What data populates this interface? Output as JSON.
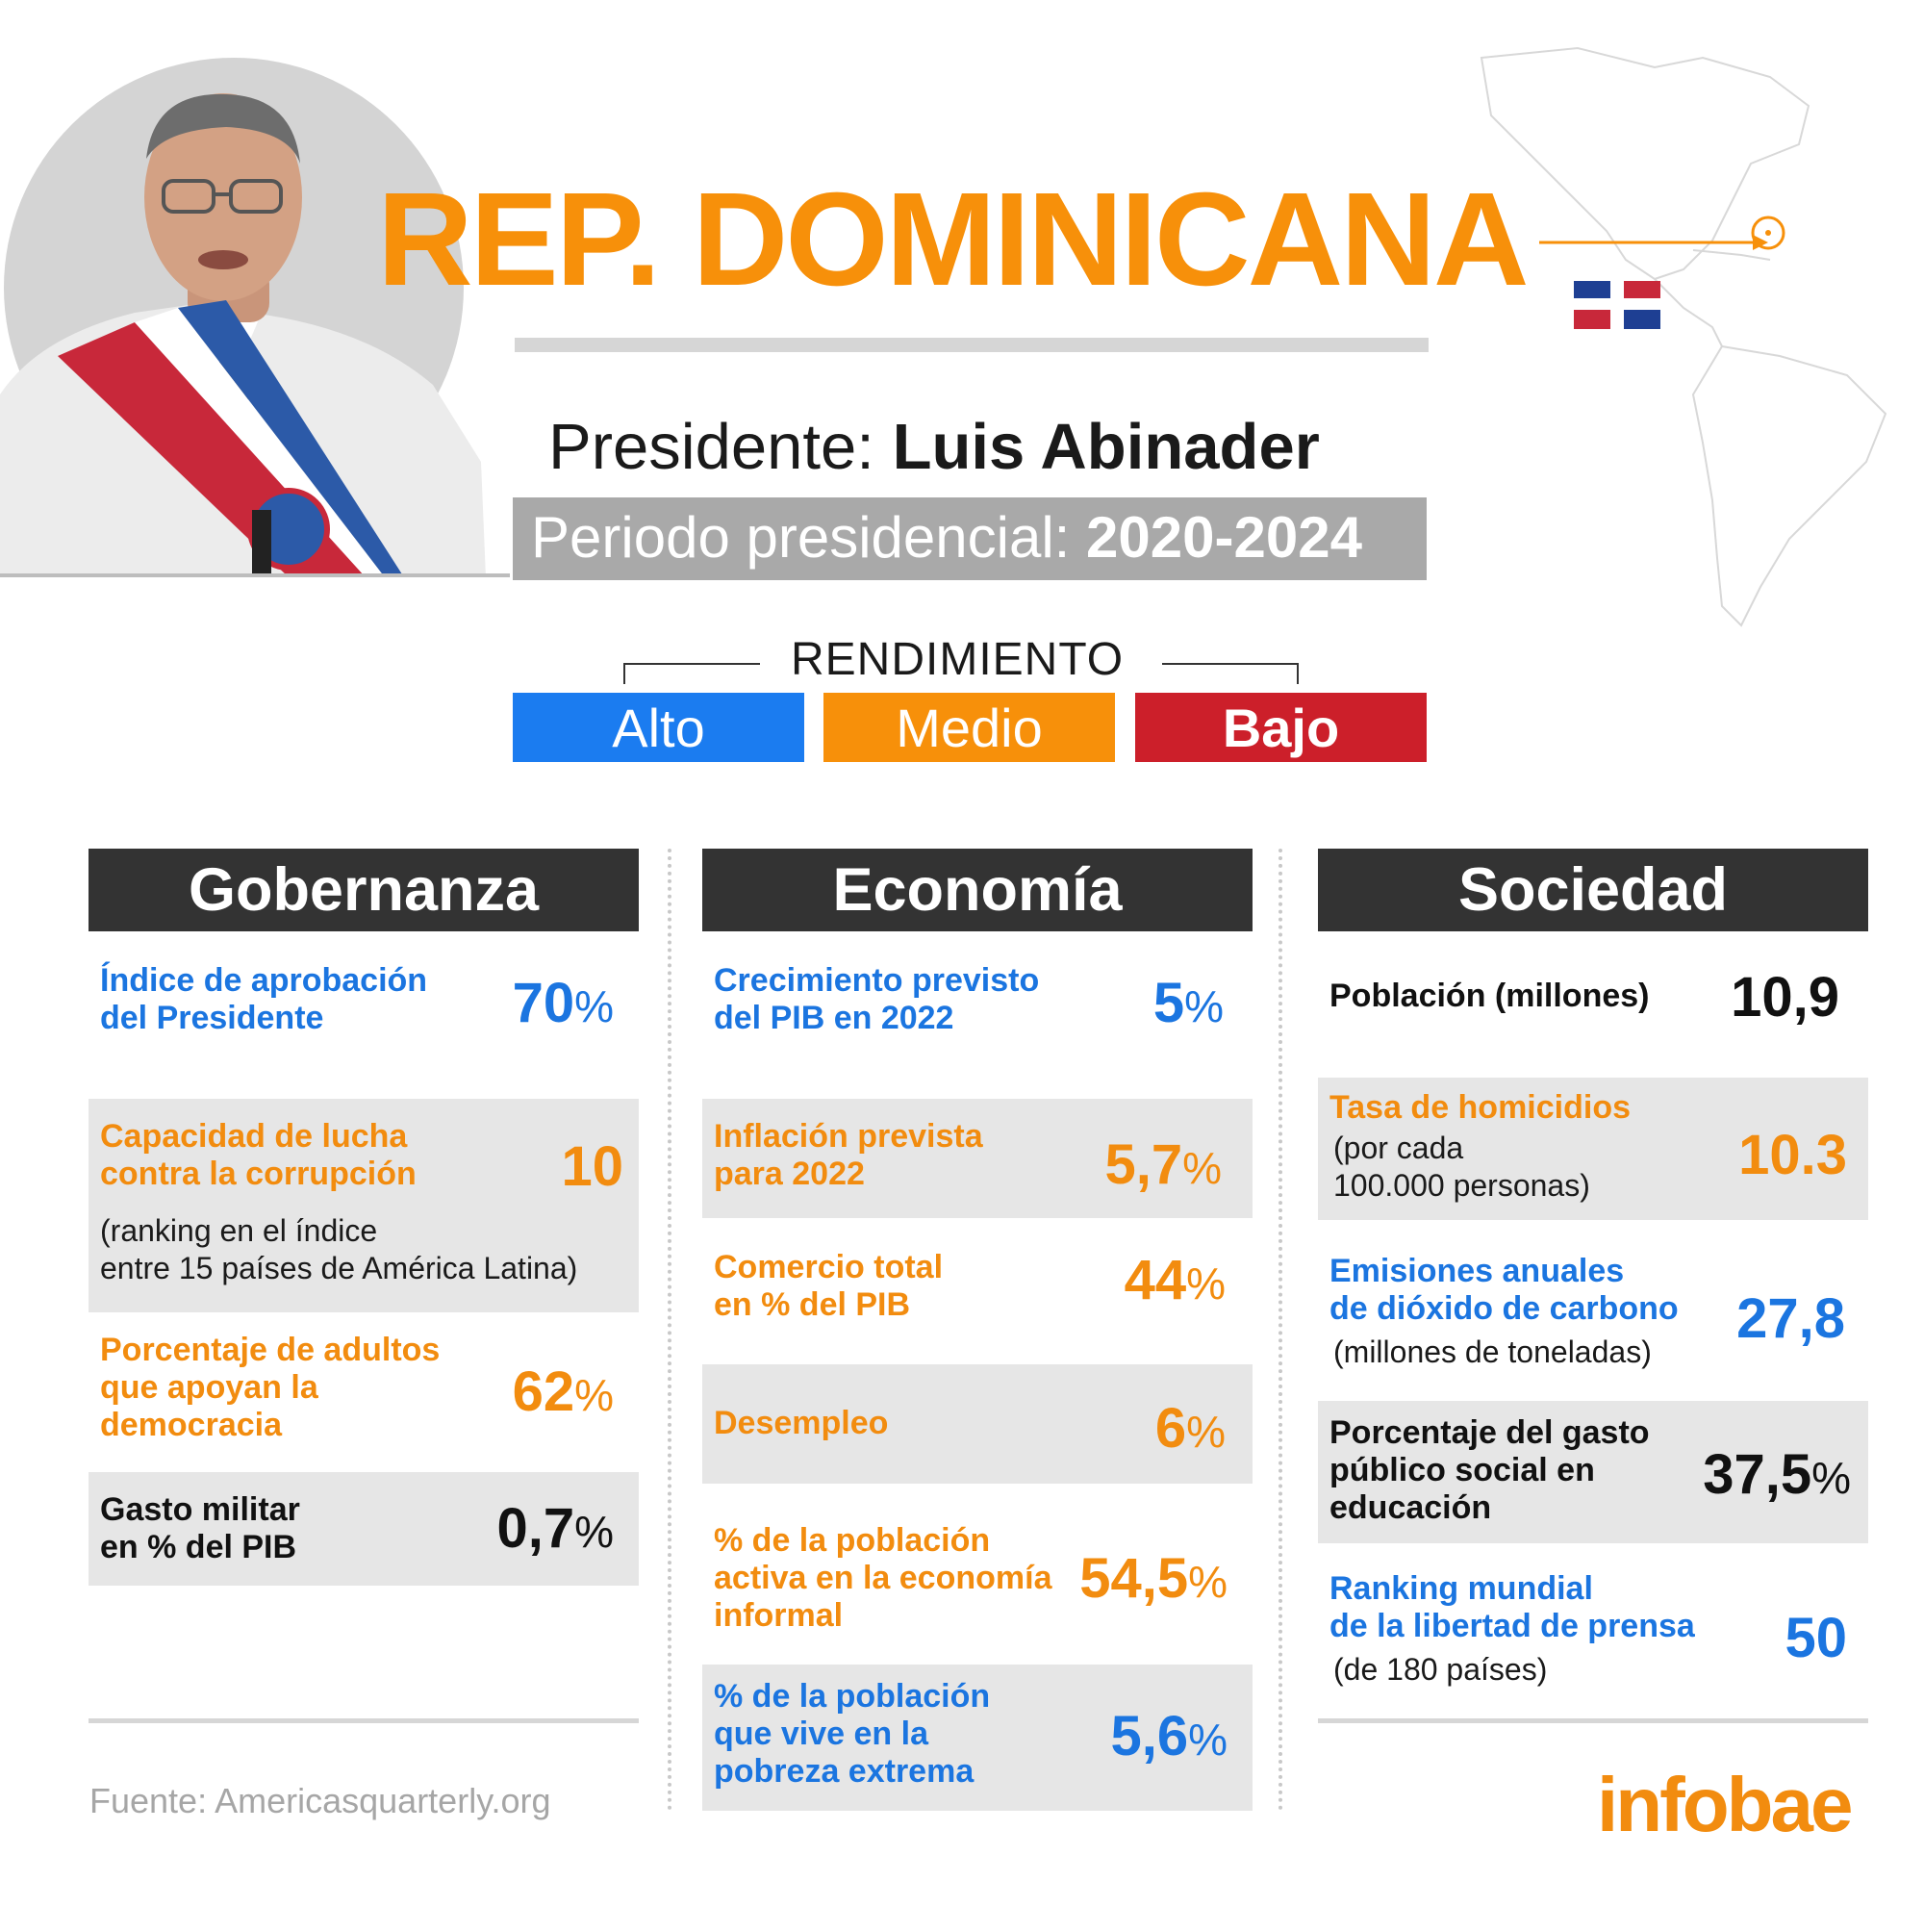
{
  "header": {
    "title": "REP. DOMINICANA",
    "presidente_label": "Presidente:",
    "presidente_name": "Luis Abinader",
    "periodo_label": "Periodo presidencial:",
    "periodo_value": "2020-2024"
  },
  "legend": {
    "title": "RENDIMIENTO",
    "alto": "Alto",
    "medio": "Medio",
    "bajo": "Bajo",
    "colors": {
      "alto": "#1b7cf0",
      "medio": "#f7900a",
      "bajo": "#cc1f2a"
    }
  },
  "gobernanza": {
    "heading": "Gobernanza",
    "items": [
      {
        "label1": "Índice de aprobación",
        "label2": "del Presidente",
        "value": "70",
        "unit": "%"
      },
      {
        "label1": "Capacidad de lucha",
        "label2": "contra la corrupción",
        "value": "10",
        "sub1": "(ranking en el índice",
        "sub2": "entre 15 países de América Latina)"
      },
      {
        "label1": "Porcentaje de adultos",
        "label2": "que apoyan la",
        "label3": "democracia",
        "value": "62",
        "unit": "%"
      },
      {
        "label1": "Gasto militar",
        "label2": "en % del PIB",
        "value": "0,7",
        "unit": "%"
      }
    ]
  },
  "economia": {
    "heading": "Economía",
    "items": [
      {
        "label1": "Crecimiento previsto",
        "label2": "del PIB en 2022",
        "value": "5",
        "unit": "%"
      },
      {
        "label1": "Inflación prevista",
        "label2": "para 2022",
        "value": "5,7",
        "unit": "%"
      },
      {
        "label1": "Comercio total",
        "label2": "en % del PIB",
        "value": "44",
        "unit": "%"
      },
      {
        "label1": "Desempleo",
        "value": "6",
        "unit": "%"
      },
      {
        "label1": "% de la población",
        "label2": "activa en la economía",
        "label3": "informal",
        "value": "54,5",
        "unit": "%"
      },
      {
        "label1": "% de la población",
        "label2": "que vive en la",
        "label3": "pobreza extrema",
        "value": "5,6",
        "unit": "%"
      }
    ]
  },
  "sociedad": {
    "heading": "Sociedad",
    "items": [
      {
        "label1": "Población (millones)",
        "value": "10,9"
      },
      {
        "label1": "Tasa de homicidios",
        "sub1": "(por cada",
        "sub2": "100.000 personas)",
        "value": "10.3"
      },
      {
        "label1": "Emisiones anuales",
        "label2": "de dióxido de carbono",
        "sub1": "(millones de toneladas)",
        "value": "27,8"
      },
      {
        "label1": "Porcentaje del gasto",
        "label2": "público social en",
        "label3": "educación",
        "value": "37,5",
        "unit": "%"
      },
      {
        "label1": "Ranking mundial",
        "label2": "de la libertad de prensa",
        "sub1": "(de 180 países)",
        "value": "50"
      }
    ]
  },
  "footer": {
    "fuente": "Fuente: Americasquarterly.org",
    "logo": "infobae"
  }
}
